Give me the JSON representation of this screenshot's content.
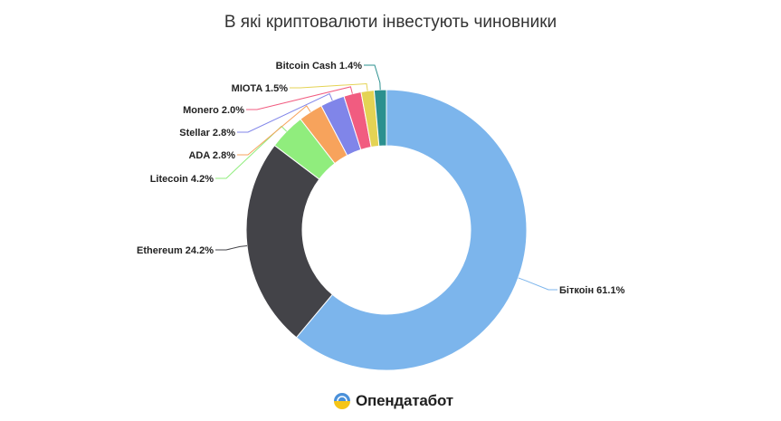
{
  "chart_data": {
    "type": "pie",
    "title": "В які криптовалюти інвестують чиновники",
    "donut": true,
    "slices": [
      {
        "label": "Біткоін",
        "value": 61.1,
        "display": "Біткоін 61.1%",
        "color": "#7cb5ec",
        "side": "right"
      },
      {
        "label": "Ethereum",
        "value": 24.2,
        "display": "Ethereum 24.2%",
        "color": "#434348",
        "side": "left"
      },
      {
        "label": "Litecoin",
        "value": 4.2,
        "display": "Litecoin 4.2%",
        "color": "#90ed7d",
        "side": "left"
      },
      {
        "label": "ADA",
        "value": 2.8,
        "display": "ADA 2.8%",
        "color": "#f7a35c",
        "side": "left"
      },
      {
        "label": "Stellar",
        "value": 2.8,
        "display": "Stellar 2.8%",
        "color": "#8085e9",
        "side": "left"
      },
      {
        "label": "Monero",
        "value": 2.0,
        "display": "Monero 2.0%",
        "color": "#f15c80",
        "side": "left"
      },
      {
        "label": "MIOTA",
        "value": 1.5,
        "display": "MIOTA 1.5%",
        "color": "#e4d354",
        "side": "left"
      },
      {
        "label": "Bitcoin Cash",
        "value": 1.4,
        "display": "Bitcoin Cash 1.4%",
        "color": "#2b908f",
        "side": "left"
      }
    ]
  },
  "brand": {
    "name": "Опендатабот",
    "logo_icon": "opendatabot-logo-icon",
    "logo_colors": [
      "#4a90d9",
      "#f5c518"
    ]
  }
}
